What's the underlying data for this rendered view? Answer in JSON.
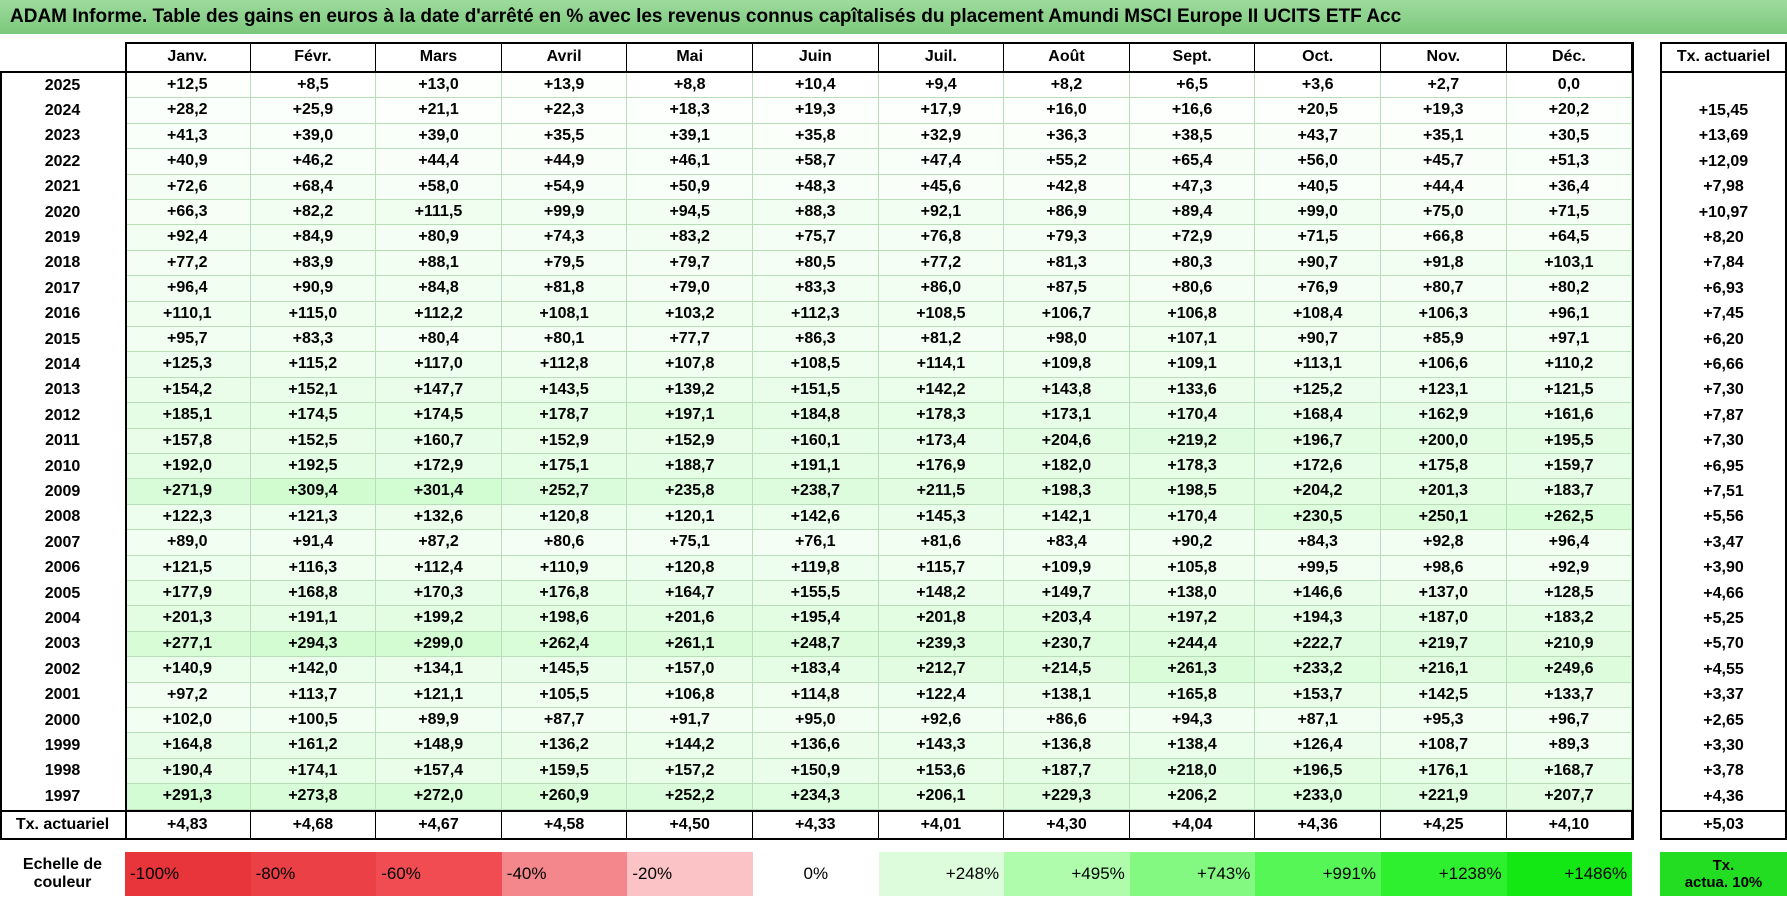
{
  "header": {
    "title": "ADAM Informe. Table des gains en euros à la date d'arrêté en % avec les revenus connus capîtalisés du placement Amundi MSCI Europe II UCITS ETF Acc"
  },
  "table": {
    "columns": [
      "Janv.",
      "Févr.",
      "Mars",
      "Avril",
      "Mai",
      "Juin",
      "Juil.",
      "Août",
      "Sept.",
      "Oct.",
      "Nov.",
      "Déc."
    ],
    "tx_header": "Tx. actuariel",
    "rows": [
      {
        "year": "2025",
        "values": [
          "+12,5",
          "+8,5",
          "+13,0",
          "+13,9",
          "+8,8",
          "+10,4",
          "+9,4",
          "+8,2",
          "+6,5",
          "+3,6",
          "+2,7",
          "0,0"
        ],
        "tx": null
      },
      {
        "year": "2024",
        "values": [
          "+28,2",
          "+25,9",
          "+21,1",
          "+22,3",
          "+18,3",
          "+19,3",
          "+17,9",
          "+16,0",
          "+16,6",
          "+20,5",
          "+19,3",
          "+20,2"
        ],
        "tx": "+15,45"
      },
      {
        "year": "2023",
        "values": [
          "+41,3",
          "+39,0",
          "+39,0",
          "+35,5",
          "+39,1",
          "+35,8",
          "+32,9",
          "+36,3",
          "+38,5",
          "+43,7",
          "+35,1",
          "+30,5"
        ],
        "tx": "+13,69"
      },
      {
        "year": "2022",
        "values": [
          "+40,9",
          "+46,2",
          "+44,4",
          "+44,9",
          "+46,1",
          "+58,7",
          "+47,4",
          "+55,2",
          "+65,4",
          "+56,0",
          "+45,7",
          "+51,3"
        ],
        "tx": "+12,09"
      },
      {
        "year": "2021",
        "values": [
          "+72,6",
          "+68,4",
          "+58,0",
          "+54,9",
          "+50,9",
          "+48,3",
          "+45,6",
          "+42,8",
          "+47,3",
          "+40,5",
          "+44,4",
          "+36,4"
        ],
        "tx": "+7,98"
      },
      {
        "year": "2020",
        "values": [
          "+66,3",
          "+82,2",
          "+111,5",
          "+99,9",
          "+94,5",
          "+88,3",
          "+92,1",
          "+86,9",
          "+89,4",
          "+99,0",
          "+75,0",
          "+71,5"
        ],
        "tx": "+10,97"
      },
      {
        "year": "2019",
        "values": [
          "+92,4",
          "+84,9",
          "+80,9",
          "+74,3",
          "+83,2",
          "+75,7",
          "+76,8",
          "+79,3",
          "+72,9",
          "+71,5",
          "+66,8",
          "+64,5"
        ],
        "tx": "+8,20"
      },
      {
        "year": "2018",
        "values": [
          "+77,2",
          "+83,9",
          "+88,1",
          "+79,5",
          "+79,7",
          "+80,5",
          "+77,2",
          "+81,3",
          "+80,3",
          "+90,7",
          "+91,8",
          "+103,1"
        ],
        "tx": "+7,84"
      },
      {
        "year": "2017",
        "values": [
          "+96,4",
          "+90,9",
          "+84,8",
          "+81,8",
          "+79,0",
          "+83,3",
          "+86,0",
          "+87,5",
          "+80,6",
          "+76,9",
          "+80,7",
          "+80,2"
        ],
        "tx": "+6,93"
      },
      {
        "year": "2016",
        "values": [
          "+110,1",
          "+115,0",
          "+112,2",
          "+108,1",
          "+103,2",
          "+112,3",
          "+108,5",
          "+106,7",
          "+106,8",
          "+108,4",
          "+106,3",
          "+96,1"
        ],
        "tx": "+7,45"
      },
      {
        "year": "2015",
        "values": [
          "+95,7",
          "+83,3",
          "+80,4",
          "+80,1",
          "+77,7",
          "+86,3",
          "+81,2",
          "+98,0",
          "+107,1",
          "+90,7",
          "+85,9",
          "+97,1"
        ],
        "tx": "+6,20"
      },
      {
        "year": "2014",
        "values": [
          "+125,3",
          "+115,2",
          "+117,0",
          "+112,8",
          "+107,8",
          "+108,5",
          "+114,1",
          "+109,8",
          "+109,1",
          "+113,1",
          "+106,6",
          "+110,2"
        ],
        "tx": "+6,66"
      },
      {
        "year": "2013",
        "values": [
          "+154,2",
          "+152,1",
          "+147,7",
          "+143,5",
          "+139,2",
          "+151,5",
          "+142,2",
          "+143,8",
          "+133,6",
          "+125,2",
          "+123,1",
          "+121,5"
        ],
        "tx": "+7,30"
      },
      {
        "year": "2012",
        "values": [
          "+185,1",
          "+174,5",
          "+174,5",
          "+178,7",
          "+197,1",
          "+184,8",
          "+178,3",
          "+173,1",
          "+170,4",
          "+168,4",
          "+162,9",
          "+161,6"
        ],
        "tx": "+7,87"
      },
      {
        "year": "2011",
        "values": [
          "+157,8",
          "+152,5",
          "+160,7",
          "+152,9",
          "+152,9",
          "+160,1",
          "+173,4",
          "+204,6",
          "+219,2",
          "+196,7",
          "+200,0",
          "+195,5"
        ],
        "tx": "+7,30"
      },
      {
        "year": "2010",
        "values": [
          "+192,0",
          "+192,5",
          "+172,9",
          "+175,1",
          "+188,7",
          "+191,1",
          "+176,9",
          "+182,0",
          "+178,3",
          "+172,6",
          "+175,8",
          "+159,7"
        ],
        "tx": "+6,95"
      },
      {
        "year": "2009",
        "values": [
          "+271,9",
          "+309,4",
          "+301,4",
          "+252,7",
          "+235,8",
          "+238,7",
          "+211,5",
          "+198,3",
          "+198,5",
          "+204,2",
          "+201,3",
          "+183,7"
        ],
        "tx": "+7,51"
      },
      {
        "year": "2008",
        "values": [
          "+122,3",
          "+121,3",
          "+132,6",
          "+120,8",
          "+120,1",
          "+142,6",
          "+145,3",
          "+142,1",
          "+170,4",
          "+230,5",
          "+250,1",
          "+262,5"
        ],
        "tx": "+5,56"
      },
      {
        "year": "2007",
        "values": [
          "+89,0",
          "+91,4",
          "+87,2",
          "+80,6",
          "+75,1",
          "+76,1",
          "+81,6",
          "+83,4",
          "+90,2",
          "+84,3",
          "+92,8",
          "+96,4"
        ],
        "tx": "+3,47"
      },
      {
        "year": "2006",
        "values": [
          "+121,5",
          "+116,3",
          "+112,4",
          "+110,9",
          "+120,8",
          "+119,8",
          "+115,7",
          "+109,9",
          "+105,8",
          "+99,5",
          "+98,6",
          "+92,9"
        ],
        "tx": "+3,90"
      },
      {
        "year": "2005",
        "values": [
          "+177,9",
          "+168,8",
          "+170,3",
          "+176,8",
          "+164,7",
          "+155,5",
          "+148,2",
          "+149,7",
          "+138,0",
          "+146,6",
          "+137,0",
          "+128,5"
        ],
        "tx": "+4,66"
      },
      {
        "year": "2004",
        "values": [
          "+201,3",
          "+191,1",
          "+199,2",
          "+198,6",
          "+201,6",
          "+195,4",
          "+201,8",
          "+203,4",
          "+197,2",
          "+194,3",
          "+187,0",
          "+183,2"
        ],
        "tx": "+5,25"
      },
      {
        "year": "2003",
        "values": [
          "+277,1",
          "+294,3",
          "+299,0",
          "+262,4",
          "+261,1",
          "+248,7",
          "+239,3",
          "+230,7",
          "+244,4",
          "+222,7",
          "+219,7",
          "+210,9"
        ],
        "tx": "+5,70"
      },
      {
        "year": "2002",
        "values": [
          "+140,9",
          "+142,0",
          "+134,1",
          "+145,5",
          "+157,0",
          "+183,4",
          "+212,7",
          "+214,5",
          "+261,3",
          "+233,2",
          "+216,1",
          "+249,6"
        ],
        "tx": "+4,55"
      },
      {
        "year": "2001",
        "values": [
          "+97,2",
          "+113,7",
          "+121,1",
          "+105,5",
          "+106,8",
          "+114,8",
          "+122,4",
          "+138,1",
          "+165,8",
          "+153,7",
          "+142,5",
          "+133,7"
        ],
        "tx": "+3,37"
      },
      {
        "year": "2000",
        "values": [
          "+102,0",
          "+100,5",
          "+89,9",
          "+87,7",
          "+91,7",
          "+95,0",
          "+92,6",
          "+86,6",
          "+94,3",
          "+87,1",
          "+95,3",
          "+96,7"
        ],
        "tx": "+2,65"
      },
      {
        "year": "1999",
        "values": [
          "+164,8",
          "+161,2",
          "+148,9",
          "+136,2",
          "+144,2",
          "+136,6",
          "+143,3",
          "+136,8",
          "+138,4",
          "+126,4",
          "+108,7",
          "+89,3"
        ],
        "tx": "+3,30"
      },
      {
        "year": "1998",
        "values": [
          "+190,4",
          "+174,1",
          "+157,4",
          "+159,5",
          "+157,2",
          "+150,9",
          "+153,6",
          "+187,7",
          "+218,0",
          "+196,5",
          "+176,1",
          "+168,7"
        ],
        "tx": "+3,78"
      },
      {
        "year": "1997",
        "values": [
          "+291,3",
          "+273,8",
          "+272,0",
          "+260,9",
          "+252,2",
          "+234,3",
          "+206,1",
          "+229,3",
          "+206,2",
          "+233,0",
          "+221,9",
          "+207,7"
        ],
        "tx": "+4,36"
      }
    ],
    "footer": {
      "label": "Tx. actuariel",
      "values": [
        "+4,83",
        "+4,68",
        "+4,67",
        "+4,58",
        "+4,50",
        "+4,33",
        "+4,01",
        "+4,30",
        "+4,04",
        "+4,36",
        "+4,25",
        "+4,10"
      ],
      "tx": "+5,03"
    }
  },
  "scale": {
    "label": "Echelle de\ncouleur",
    "items": [
      {
        "value": -100,
        "label": "-100%",
        "color": "#e8353b"
      },
      {
        "value": -80,
        "label": "-80%",
        "color": "#ec4047"
      },
      {
        "value": -60,
        "label": "-60%",
        "color": "#f04c52"
      },
      {
        "value": -40,
        "label": "-40%",
        "color": "#f4878b"
      },
      {
        "value": -20,
        "label": "-20%",
        "color": "#fbc3c5"
      },
      {
        "value": 0,
        "label": "0%",
        "color": "#ffffff"
      },
      {
        "value": 248,
        "label": "+248%",
        "color": "#dcfcdc"
      },
      {
        "value": 495,
        "label": "+495%",
        "color": "#aefcac"
      },
      {
        "value": 743,
        "label": "+743%",
        "color": "#83f982"
      },
      {
        "value": 991,
        "label": "+991%",
        "color": "#55f655"
      },
      {
        "value": 1238,
        "label": "+1238%",
        "color": "#2ef02e"
      },
      {
        "value": 1486,
        "label": "+1486%",
        "color": "#14e814"
      }
    ],
    "target": {
      "label": "Tx.\nactua. 10%",
      "color": "#22dd22"
    }
  }
}
